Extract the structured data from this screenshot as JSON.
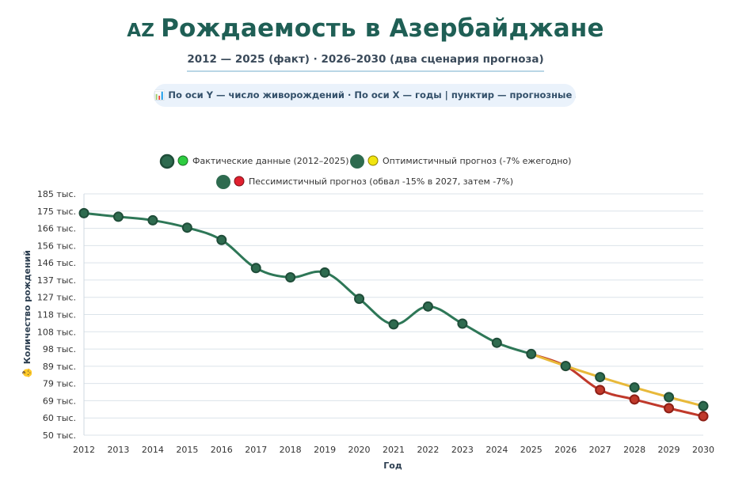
{
  "header": {
    "flag": "AZ",
    "title": "Рождаемость в Азербайджане",
    "subtitle": "2012 — 2025 (факт) · 2026–2030 (два сценария прогноза)",
    "hint_icon": "📊",
    "hint": "По оси Y — число живорождений · По оси X — годы | пунктир — прогнозные зоны"
  },
  "colors": {
    "actual": "#2e7757",
    "actual_marker": "#2e6b4f",
    "actual_marker_stroke": "#1f4d39",
    "optimistic": "#e8b93a",
    "optimistic_marker": "#2e6b4f",
    "pessimistic": "#c0392b",
    "pessimistic_marker": "#c0392b",
    "legend_green": "#2ecc40",
    "legend_yellow": "#f1e40f",
    "legend_red": "#e0202f",
    "grid": "#dbe3ea"
  },
  "chart_data": {
    "type": "line",
    "title": "Рождаемость в Азербайджане",
    "xlabel": "Год",
    "ylabel": "Количество рождений",
    "ylabel_icon": "👶",
    "y_tick_labels": [
      "50 тыс.",
      "60 тыс.",
      "69 тыс.",
      "79 тыс.",
      "89 тыс.",
      "98 тыс.",
      "108 тыс.",
      "118 тыс.",
      "127 тыс.",
      "137 тыс.",
      "146 тыс.",
      "156 тыс.",
      "166 тыс.",
      "175 тыс.",
      "185 тыс."
    ],
    "ylim": [
      50300,
      185300
    ],
    "x": [
      2012,
      2013,
      2014,
      2015,
      2016,
      2017,
      2018,
      2019,
      2020,
      2021,
      2022,
      2023,
      2024,
      2025,
      2026,
      2027,
      2028,
      2029,
      2030
    ],
    "series": [
      {
        "name": "Фактические данные (2012–2025)",
        "key": "actual",
        "x": [
          2012,
          2013,
          2014,
          2015,
          2016,
          2017,
          2018,
          2019,
          2020,
          2021,
          2022,
          2023,
          2024,
          2025
        ],
        "values": [
          174500,
          172500,
          170500,
          166400,
          159500,
          143800,
          138600,
          141300,
          126600,
          112300,
          122300,
          112700,
          102000,
          95700
        ]
      },
      {
        "name": "Оптимистичный прогноз (-7% ежегодно)",
        "key": "optimistic",
        "x": [
          2025,
          2026,
          2027,
          2028,
          2029,
          2030
        ],
        "values": [
          95700,
          89000,
          82800,
          77000,
          71600,
          66600
        ]
      },
      {
        "name": "Пессимистичный прогноз (обвал -15% в 2027, затем -7%)",
        "key": "pessimistic",
        "x": [
          2025,
          2026,
          2027,
          2028,
          2029,
          2030
        ],
        "values": [
          95700,
          89000,
          75600,
          70300,
          65400,
          60900
        ]
      }
    ],
    "legend_position": "top-center"
  }
}
